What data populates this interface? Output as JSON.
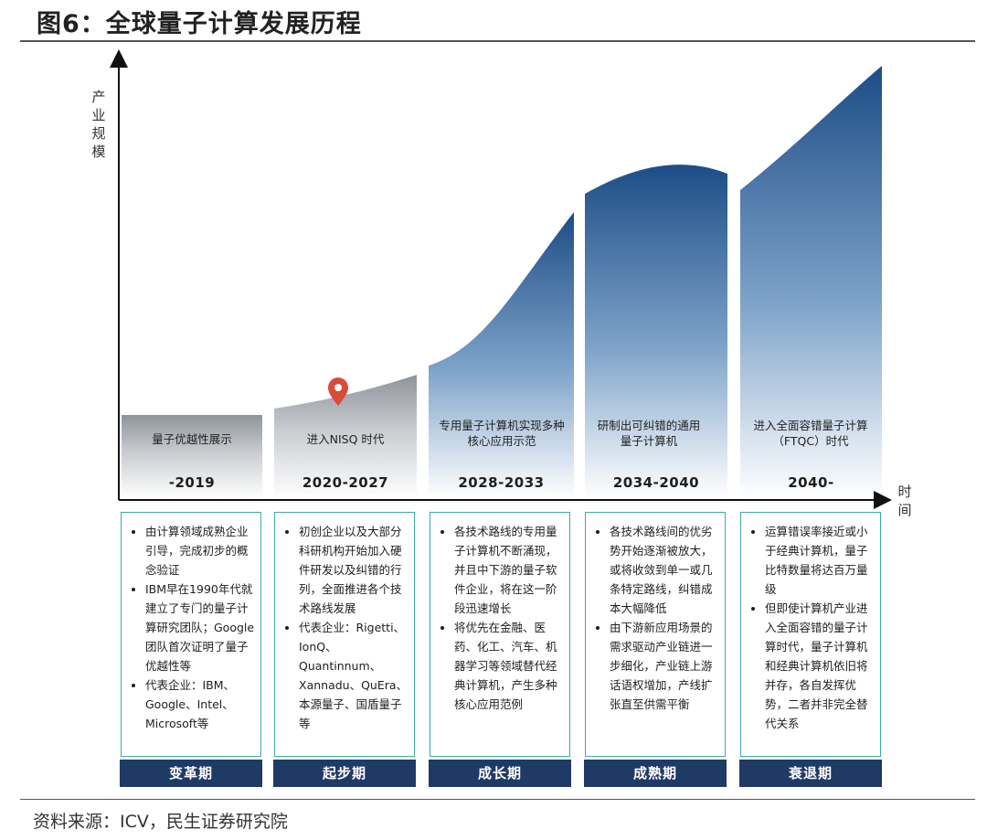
{
  "title": "图6：全球量子计算发展历程",
  "source": "资料来源：ICV，民生证券研究院",
  "y_axis_label": "产业规模",
  "x_axis_label": "时间",
  "colors": {
    "phase_bar": "#203a66",
    "box_border": "#3fa9a4",
    "curve_dark": "#1d4d86",
    "marker": "#d94b3a"
  },
  "stages": [
    {
      "text": "量子优越性展示",
      "years": "-2019"
    },
    {
      "text": "进入NISQ 时代",
      "years": "2020-2027"
    },
    {
      "text": "专用量子计算机实现多种核心应用示范",
      "years": "2028-2033"
    },
    {
      "text": "研制出可纠错的通用量子计算机",
      "years": "2034-2040"
    },
    {
      "text": "进入全面容错量子计算（FTQC）时代",
      "years": "2040-"
    }
  ],
  "boxes": [
    {
      "phase": "变革期",
      "bullets": [
        "由计算领域成熟企业引导，完成初步的概念验证",
        "IBM早在1990年代就建立了专门的量子计算研究团队；Google团队首次证明了量子优越性等",
        "代表企业：IBM、Google、Intel、Microsoft等"
      ]
    },
    {
      "phase": "起步期",
      "bullets": [
        "初创企业以及大部分科研机构开始加入硬件研发以及纠错的行列，全面推进各个技术路线发展",
        "代表企业：Rigetti、IonQ、Quantinnum、Xannadu、QuEra、本源量子、国盾量子等"
      ]
    },
    {
      "phase": "成长期",
      "bullets": [
        "各技术路线的专用量子计算机不断涌现，并且中下游的量子软件企业，将在这一阶段迅速增长",
        "将优先在金融、医药、化工、汽车、机器学习等领域替代经典计算机，产生多种核心应用范例"
      ]
    },
    {
      "phase": "成熟期",
      "bullets": [
        "各技术路线间的优劣势开始逐渐被放大，或将收敛到单一或几条特定路线，纠错成本大幅降低",
        "由下游新应用场景的需求驱动产业链进一步细化，产业链上游话语权增加，产线扩张直至供需平衡"
      ]
    },
    {
      "phase": "衰退期",
      "bullets": [
        "运算错误率接近或小于经典计算机，量子比特数量将达百万量级",
        "但即使计算机产业进入全面容错的量子计算时代，量子计算机和经典计算机依旧将并存，各自发挥优势，二者并非完全替代关系"
      ]
    }
  ]
}
